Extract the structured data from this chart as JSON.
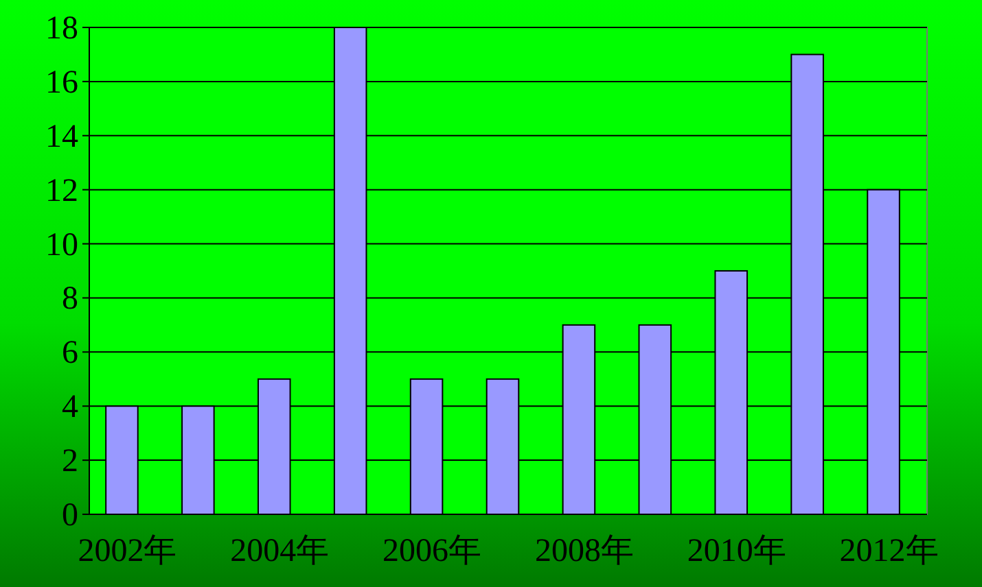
{
  "chart_data": {
    "type": "bar",
    "categories": [
      "2002年",
      null,
      "2004年",
      null,
      "2006年",
      null,
      "2008年",
      null,
      "2010年",
      null,
      "2012年"
    ],
    "values": [
      4,
      4,
      5,
      18,
      5,
      5,
      7,
      7,
      9,
      17,
      12
    ],
    "color": "#9999ff",
    "ylim": [
      0,
      18
    ],
    "yticks": [
      0,
      2,
      4,
      6,
      8,
      10,
      12,
      14,
      16,
      18
    ],
    "grid": "y"
  }
}
